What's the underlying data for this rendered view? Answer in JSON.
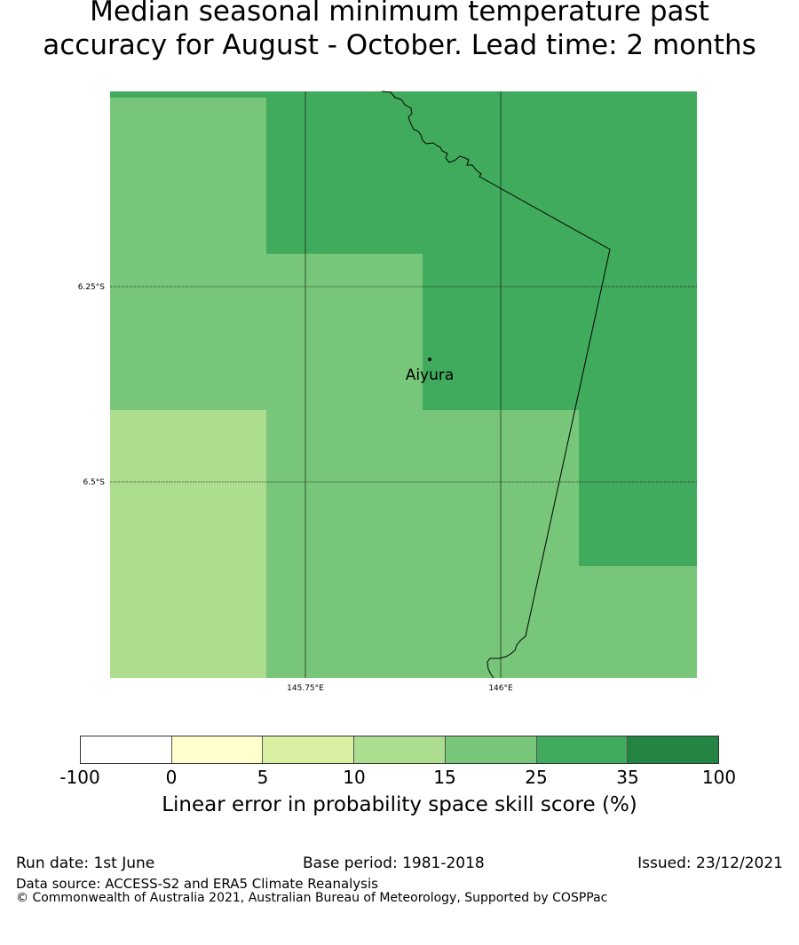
{
  "title_line1": "Median seasonal minimum temperature past",
  "title_line2": "accuracy for August - October. Lead time: 2 months",
  "map": {
    "lat_labels": [
      "6.25°S",
      "6.5°S"
    ],
    "lon_labels": [
      "145.75°E",
      "146°E"
    ],
    "place": "Aiyura",
    "colors": {
      "c15_25": "#78c679",
      "c25_35": "#41ab5d",
      "c10_15": "#addd8e"
    }
  },
  "colorbar": {
    "ticks": [
      "-100",
      "0",
      "5",
      "10",
      "15",
      "25",
      "35",
      "100"
    ],
    "colors": [
      "#ffffff",
      "#ffffcc",
      "#d9f0a3",
      "#addd8e",
      "#78c679",
      "#41ab5d",
      "#238443"
    ],
    "label": "Linear error in probability space skill score (%)"
  },
  "footer": {
    "run_date": "Run date: 1st June",
    "base_period": "Base period: 1981-2018",
    "issued": "Issued: 23/12/2021",
    "data_source": "Data source: ACCESS-S2 and ERA5 Climate Reanalysis",
    "copyright": "© Commonwealth of Australia 2021, Australian Bureau of Meteorology, Supported by COSPPac"
  }
}
